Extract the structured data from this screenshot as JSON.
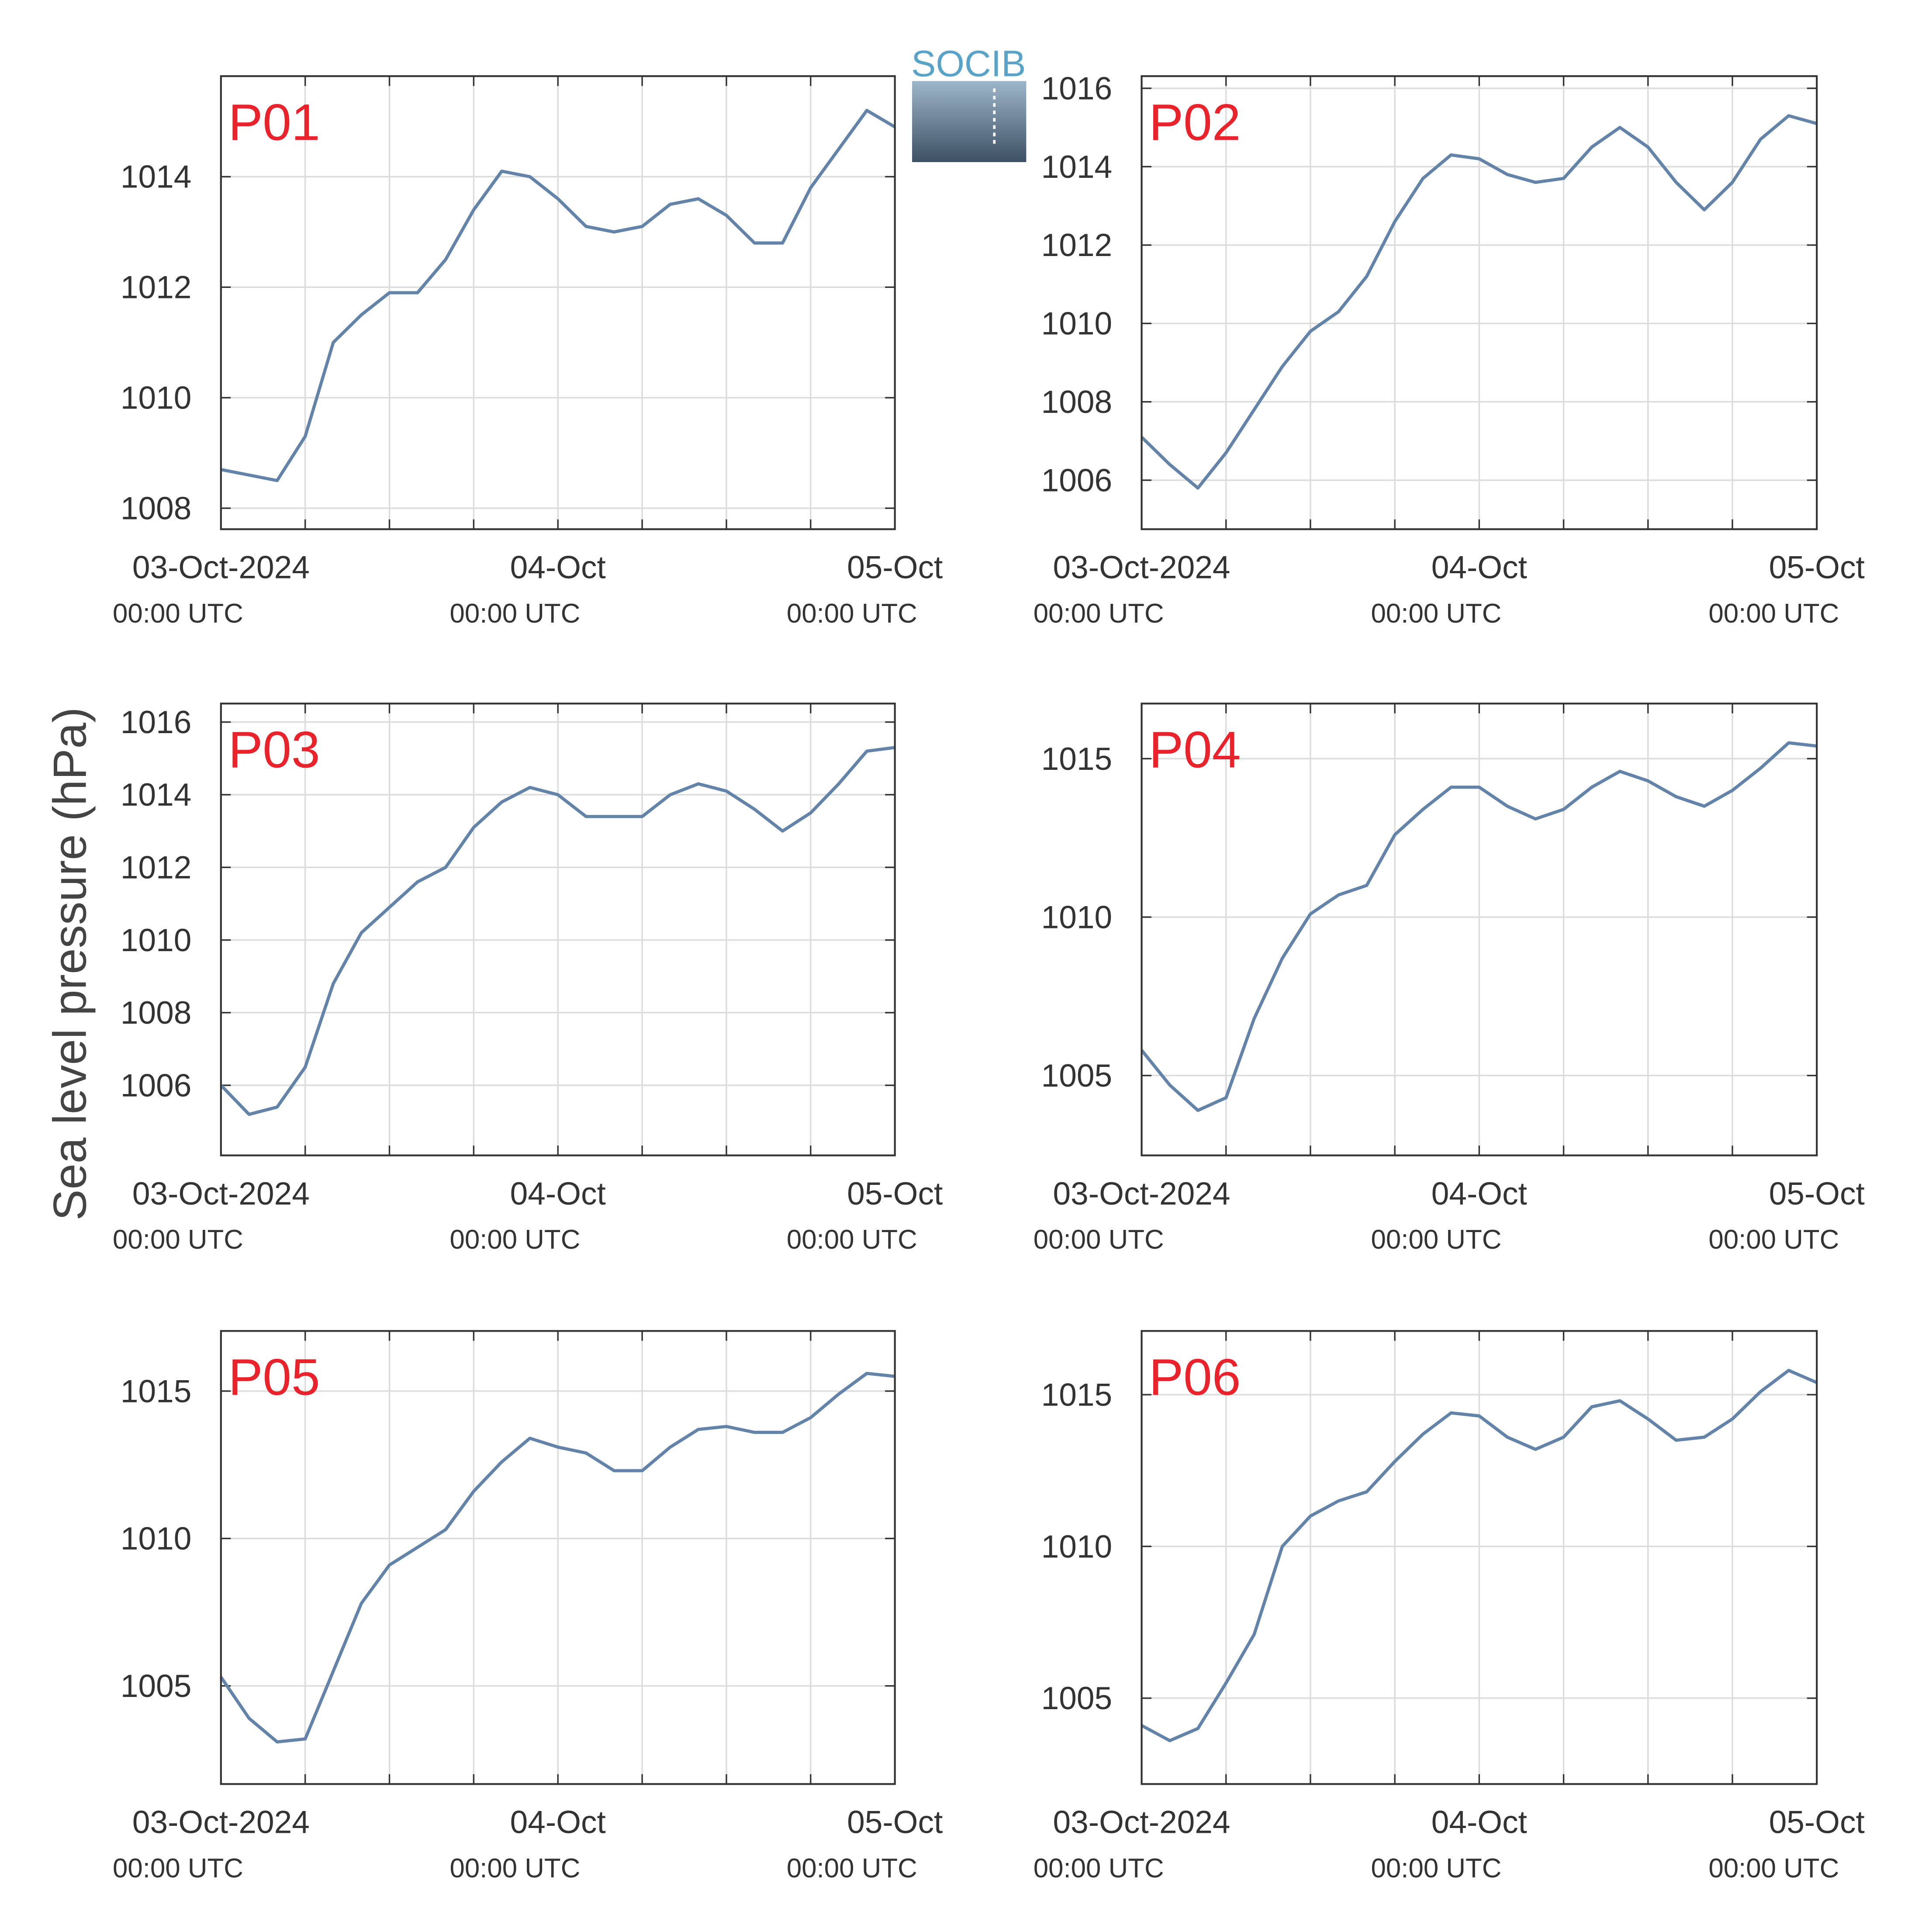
{
  "ylabel": "Sea level pressure (hPa)",
  "logo": "SOCIB",
  "chart_data": [
    {
      "type": "line",
      "annotation": "P01",
      "x": [
        "2024-10-03 00:00",
        "2024-10-03 02:00",
        "2024-10-03 04:00",
        "2024-10-03 06:00",
        "2024-10-03 08:00",
        "2024-10-03 10:00",
        "2024-10-03 12:00",
        "2024-10-03 14:00",
        "2024-10-03 16:00",
        "2024-10-03 18:00",
        "2024-10-03 20:00",
        "2024-10-03 22:00",
        "2024-10-04 00:00",
        "2024-10-04 02:00",
        "2024-10-04 04:00",
        "2024-10-04 06:00",
        "2024-10-04 08:00",
        "2024-10-04 10:00",
        "2024-10-04 12:00",
        "2024-10-04 14:00",
        "2024-10-04 16:00",
        "2024-10-04 18:00",
        "2024-10-04 20:00",
        "2024-10-04 22:00",
        "2024-10-05 00:00"
      ],
      "series": [
        {
          "color": "#6384a8",
          "values": [
            1008.7,
            1008.6,
            1008.5,
            1009.3,
            1011.0,
            1011.5,
            1011.9,
            1011.9,
            1012.5,
            1013.4,
            1014.1,
            1014.0,
            1013.6,
            1013.1,
            1013.0,
            1013.1,
            1013.5,
            1013.6,
            1013.3,
            1012.8,
            1012.8,
            1013.8,
            1014.5,
            1015.2,
            1014.9
          ]
        }
      ],
      "xlim": [
        "2024-10-03 00:00",
        "2024-10-05 00:00"
      ],
      "xticks": [
        {
          "value": "2024-10-03 00:00",
          "label": "03-Oct-2024",
          "sublabel": "00:00 UTC"
        },
        {
          "value": "2024-10-03 06:00"
        },
        {
          "value": "2024-10-03 12:00"
        },
        {
          "value": "2024-10-03 18:00"
        },
        {
          "value": "2024-10-04 00:00",
          "label": "04-Oct",
          "sublabel": "00:00 UTC"
        },
        {
          "value": "2024-10-04 06:00"
        },
        {
          "value": "2024-10-04 12:00"
        },
        {
          "value": "2024-10-04 18:00"
        },
        {
          "value": "2024-10-05 00:00",
          "label": "05-Oct",
          "sublabel": "00:00 UTC"
        }
      ],
      "ylim": [
        1007.62,
        1015.82
      ],
      "yticks": [
        1008,
        1010,
        1012,
        1014
      ],
      "grid": true
    },
    {
      "type": "line",
      "annotation": "P02",
      "x": [
        "2024-10-03 00:00",
        "2024-10-03 02:00",
        "2024-10-03 04:00",
        "2024-10-03 06:00",
        "2024-10-03 08:00",
        "2024-10-03 10:00",
        "2024-10-03 12:00",
        "2024-10-03 14:00",
        "2024-10-03 16:00",
        "2024-10-03 18:00",
        "2024-10-03 20:00",
        "2024-10-03 22:00",
        "2024-10-04 00:00",
        "2024-10-04 02:00",
        "2024-10-04 04:00",
        "2024-10-04 06:00",
        "2024-10-04 08:00",
        "2024-10-04 10:00",
        "2024-10-04 12:00",
        "2024-10-04 14:00",
        "2024-10-04 16:00",
        "2024-10-04 18:00",
        "2024-10-04 20:00",
        "2024-10-04 22:00",
        "2024-10-05 00:00"
      ],
      "series": [
        {
          "color": "#6384a8",
          "values": [
            1007.1,
            1006.4,
            1005.8,
            1006.7,
            1007.8,
            1008.9,
            1009.8,
            1010.3,
            1011.2,
            1012.6,
            1013.7,
            1014.3,
            1014.2,
            1013.8,
            1013.6,
            1013.7,
            1014.5,
            1015.0,
            1014.5,
            1013.6,
            1012.9,
            1013.6,
            1014.7,
            1015.3,
            1015.1
          ]
        }
      ],
      "xlim": [
        "2024-10-03 00:00",
        "2024-10-05 00:00"
      ],
      "xticks": [
        {
          "value": "2024-10-03 00:00",
          "label": "03-Oct-2024",
          "sublabel": "00:00 UTC"
        },
        {
          "value": "2024-10-03 06:00"
        },
        {
          "value": "2024-10-03 12:00"
        },
        {
          "value": "2024-10-03 18:00"
        },
        {
          "value": "2024-10-04 00:00",
          "label": "04-Oct",
          "sublabel": "00:00 UTC"
        },
        {
          "value": "2024-10-04 06:00"
        },
        {
          "value": "2024-10-04 12:00"
        },
        {
          "value": "2024-10-04 18:00"
        },
        {
          "value": "2024-10-05 00:00",
          "label": "05-Oct",
          "sublabel": "00:00 UTC"
        }
      ],
      "ylim": [
        1004.75,
        1016.31
      ],
      "yticks": [
        1006,
        1008,
        1010,
        1012,
        1014,
        1016
      ],
      "grid": true
    },
    {
      "type": "line",
      "annotation": "P03",
      "x": [
        "2024-10-03 00:00",
        "2024-10-03 02:00",
        "2024-10-03 04:00",
        "2024-10-03 06:00",
        "2024-10-03 08:00",
        "2024-10-03 10:00",
        "2024-10-03 12:00",
        "2024-10-03 14:00",
        "2024-10-03 16:00",
        "2024-10-03 18:00",
        "2024-10-03 20:00",
        "2024-10-03 22:00",
        "2024-10-04 00:00",
        "2024-10-04 02:00",
        "2024-10-04 04:00",
        "2024-10-04 06:00",
        "2024-10-04 08:00",
        "2024-10-04 10:00",
        "2024-10-04 12:00",
        "2024-10-04 14:00",
        "2024-10-04 16:00",
        "2024-10-04 18:00",
        "2024-10-04 20:00",
        "2024-10-04 22:00",
        "2024-10-05 00:00"
      ],
      "series": [
        {
          "color": "#6384a8",
          "values": [
            1006.0,
            1005.2,
            1005.4,
            1006.5,
            1008.8,
            1010.2,
            1010.9,
            1011.6,
            1012.0,
            1013.1,
            1013.8,
            1014.2,
            1014.0,
            1013.4,
            1013.4,
            1013.4,
            1014.0,
            1014.3,
            1014.1,
            1013.6,
            1013.0,
            1013.5,
            1014.3,
            1015.2,
            1015.3
          ]
        }
      ],
      "xlim": [
        "2024-10-03 00:00",
        "2024-10-05 00:00"
      ],
      "xticks": [
        {
          "value": "2024-10-03 00:00",
          "label": "03-Oct-2024",
          "sublabel": "00:00 UTC"
        },
        {
          "value": "2024-10-03 06:00"
        },
        {
          "value": "2024-10-03 12:00"
        },
        {
          "value": "2024-10-03 18:00"
        },
        {
          "value": "2024-10-04 00:00",
          "label": "04-Oct",
          "sublabel": "00:00 UTC"
        },
        {
          "value": "2024-10-04 06:00"
        },
        {
          "value": "2024-10-04 12:00"
        },
        {
          "value": "2024-10-04 18:00"
        },
        {
          "value": "2024-10-05 00:00",
          "label": "05-Oct",
          "sublabel": "00:00 UTC"
        }
      ],
      "ylim": [
        1004.07,
        1016.51
      ],
      "yticks": [
        1006,
        1008,
        1010,
        1012,
        1014,
        1016
      ],
      "grid": true
    },
    {
      "type": "line",
      "annotation": "P04",
      "x": [
        "2024-10-03 00:00",
        "2024-10-03 02:00",
        "2024-10-03 04:00",
        "2024-10-03 06:00",
        "2024-10-03 08:00",
        "2024-10-03 10:00",
        "2024-10-03 12:00",
        "2024-10-03 14:00",
        "2024-10-03 16:00",
        "2024-10-03 18:00",
        "2024-10-03 20:00",
        "2024-10-03 22:00",
        "2024-10-04 00:00",
        "2024-10-04 02:00",
        "2024-10-04 04:00",
        "2024-10-04 06:00",
        "2024-10-04 08:00",
        "2024-10-04 10:00",
        "2024-10-04 12:00",
        "2024-10-04 14:00",
        "2024-10-04 16:00",
        "2024-10-04 18:00",
        "2024-10-04 20:00",
        "2024-10-04 22:00",
        "2024-10-05 00:00"
      ],
      "series": [
        {
          "color": "#6384a8",
          "values": [
            1005.8,
            1004.7,
            1003.9,
            1004.3,
            1006.8,
            1008.7,
            1010.1,
            1010.7,
            1011.0,
            1012.6,
            1013.4,
            1014.1,
            1014.1,
            1013.5,
            1013.1,
            1013.4,
            1014.1,
            1014.6,
            1014.3,
            1013.8,
            1013.5,
            1014.0,
            1014.7,
            1015.5,
            1015.4
          ]
        }
      ],
      "xlim": [
        "2024-10-03 00:00",
        "2024-10-05 00:00"
      ],
      "xticks": [
        {
          "value": "2024-10-03 00:00",
          "label": "03-Oct-2024",
          "sublabel": "00:00 UTC"
        },
        {
          "value": "2024-10-03 06:00"
        },
        {
          "value": "2024-10-03 12:00"
        },
        {
          "value": "2024-10-03 18:00"
        },
        {
          "value": "2024-10-04 00:00",
          "label": "04-Oct",
          "sublabel": "00:00 UTC"
        },
        {
          "value": "2024-10-04 06:00"
        },
        {
          "value": "2024-10-04 12:00"
        },
        {
          "value": "2024-10-04 18:00"
        },
        {
          "value": "2024-10-05 00:00",
          "label": "05-Oct",
          "sublabel": "00:00 UTC"
        }
      ],
      "ylim": [
        1002.48,
        1016.74
      ],
      "yticks": [
        1005,
        1010,
        1015
      ],
      "grid": true
    },
    {
      "type": "line",
      "annotation": "P05",
      "x": [
        "2024-10-03 00:00",
        "2024-10-03 02:00",
        "2024-10-03 04:00",
        "2024-10-03 06:00",
        "2024-10-03 08:00",
        "2024-10-03 10:00",
        "2024-10-03 12:00",
        "2024-10-03 14:00",
        "2024-10-03 16:00",
        "2024-10-03 18:00",
        "2024-10-03 20:00",
        "2024-10-03 22:00",
        "2024-10-04 00:00",
        "2024-10-04 02:00",
        "2024-10-04 04:00",
        "2024-10-04 06:00",
        "2024-10-04 08:00",
        "2024-10-04 10:00",
        "2024-10-04 12:00",
        "2024-10-04 14:00",
        "2024-10-04 16:00",
        "2024-10-04 18:00",
        "2024-10-04 20:00",
        "2024-10-04 22:00",
        "2024-10-05 00:00"
      ],
      "series": [
        {
          "color": "#6384a8",
          "values": [
            1005.3,
            1003.9,
            1003.1,
            1003.2,
            1005.5,
            1007.8,
            1009.1,
            1009.7,
            1010.3,
            1011.6,
            1012.6,
            1013.4,
            1013.1,
            1012.9,
            1012.3,
            1012.3,
            1013.1,
            1013.7,
            1013.8,
            1013.6,
            1013.6,
            1014.1,
            1014.9,
            1015.6,
            1015.5
          ]
        }
      ],
      "xlim": [
        "2024-10-03 00:00",
        "2024-10-05 00:00"
      ],
      "xticks": [
        {
          "value": "2024-10-03 00:00",
          "label": "03-Oct-2024",
          "sublabel": "00:00 UTC"
        },
        {
          "value": "2024-10-03 06:00"
        },
        {
          "value": "2024-10-03 12:00"
        },
        {
          "value": "2024-10-03 18:00"
        },
        {
          "value": "2024-10-04 00:00",
          "label": "04-Oct",
          "sublabel": "00:00 UTC"
        },
        {
          "value": "2024-10-04 06:00"
        },
        {
          "value": "2024-10-04 12:00"
        },
        {
          "value": "2024-10-04 18:00"
        },
        {
          "value": "2024-10-05 00:00",
          "label": "05-Oct",
          "sublabel": "00:00 UTC"
        }
      ],
      "ylim": [
        1001.67,
        1017.04
      ],
      "yticks": [
        1005,
        1010,
        1015
      ],
      "grid": true
    },
    {
      "type": "line",
      "annotation": "P06",
      "x": [
        "2024-10-03 00:00",
        "2024-10-03 02:00",
        "2024-10-03 04:00",
        "2024-10-03 06:00",
        "2024-10-03 08:00",
        "2024-10-03 10:00",
        "2024-10-03 12:00",
        "2024-10-03 14:00",
        "2024-10-03 16:00",
        "2024-10-03 18:00",
        "2024-10-03 20:00",
        "2024-10-03 22:00",
        "2024-10-04 00:00",
        "2024-10-04 02:00",
        "2024-10-04 04:00",
        "2024-10-04 06:00",
        "2024-10-04 08:00",
        "2024-10-04 10:00",
        "2024-10-04 12:00",
        "2024-10-04 14:00",
        "2024-10-04 16:00",
        "2024-10-04 18:00",
        "2024-10-04 20:00",
        "2024-10-04 22:00",
        "2024-10-05 00:00"
      ],
      "series": [
        {
          "color": "#6384a8",
          "values": [
            1004.1,
            1003.6,
            1004.0,
            1005.5,
            1007.1,
            1010.0,
            1011.0,
            1011.5,
            1011.8,
            1012.8,
            1013.7,
            1014.4,
            1014.3,
            1013.6,
            1013.2,
            1013.6,
            1014.6,
            1014.8,
            1014.2,
            1013.5,
            1013.6,
            1014.2,
            1015.1,
            1015.8,
            1015.4
          ]
        }
      ],
      "xlim": [
        "2024-10-03 00:00",
        "2024-10-05 00:00"
      ],
      "xticks": [
        {
          "value": "2024-10-03 00:00",
          "label": "03-Oct-2024",
          "sublabel": "00:00 UTC"
        },
        {
          "value": "2024-10-03 06:00"
        },
        {
          "value": "2024-10-03 12:00"
        },
        {
          "value": "2024-10-03 18:00"
        },
        {
          "value": "2024-10-04 00:00",
          "label": "04-Oct",
          "sublabel": "00:00 UTC"
        },
        {
          "value": "2024-10-04 06:00"
        },
        {
          "value": "2024-10-04 12:00"
        },
        {
          "value": "2024-10-04 18:00"
        },
        {
          "value": "2024-10-05 00:00",
          "label": "05-Oct",
          "sublabel": "00:00 UTC"
        }
      ],
      "ylim": [
        1002.17,
        1017.1
      ],
      "yticks": [
        1005,
        1010,
        1015
      ],
      "grid": true
    }
  ]
}
